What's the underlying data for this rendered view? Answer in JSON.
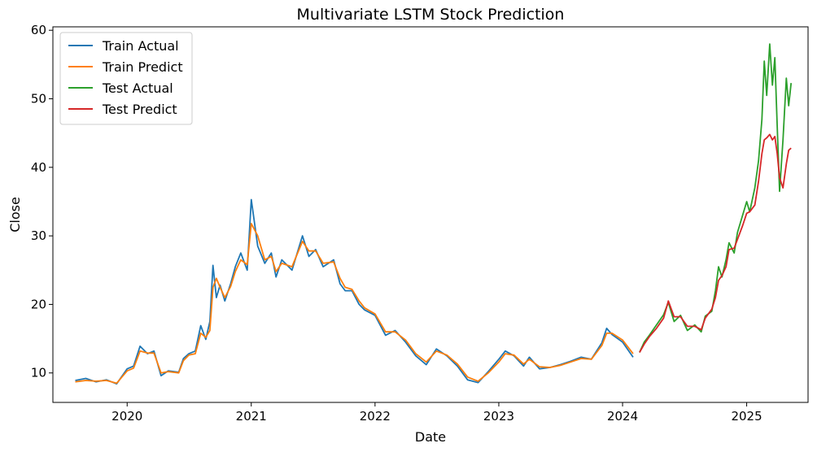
{
  "chart_data": {
    "type": "line",
    "title": "Multivariate LSTM Stock Prediction",
    "xlabel": "Date",
    "ylabel": "Close",
    "xlim": [
      "2019-05-27",
      "2025-07-01"
    ],
    "ylim": [
      5.7,
      60.5
    ],
    "x_ticks": [
      "2020",
      "2021",
      "2022",
      "2023",
      "2024",
      "2025"
    ],
    "x_tick_dates": [
      "2020-01-01",
      "2021-01-01",
      "2022-01-01",
      "2023-01-01",
      "2024-01-01",
      "2025-01-01"
    ],
    "y_ticks": [
      10,
      20,
      30,
      40,
      50,
      60
    ],
    "grid": false,
    "legend_position": "top-left",
    "series": [
      {
        "name": "Train Actual",
        "color": "#1f77b4",
        "points": [
          [
            "2019-08-01",
            8.9
          ],
          [
            "2019-09-01",
            9.2
          ],
          [
            "2019-10-01",
            8.7
          ],
          [
            "2019-11-01",
            9.0
          ],
          [
            "2019-12-01",
            8.4
          ],
          [
            "2020-01-01",
            10.6
          ],
          [
            "2020-01-20",
            11.0
          ],
          [
            "2020-02-08",
            13.9
          ],
          [
            "2020-03-01",
            12.8
          ],
          [
            "2020-03-20",
            13.2
          ],
          [
            "2020-04-10",
            9.6
          ],
          [
            "2020-05-01",
            10.3
          ],
          [
            "2020-06-01",
            10.1
          ],
          [
            "2020-06-15",
            12.1
          ],
          [
            "2020-07-01",
            12.8
          ],
          [
            "2020-07-20",
            13.2
          ],
          [
            "2020-08-05",
            16.9
          ],
          [
            "2020-08-20",
            14.9
          ],
          [
            "2020-09-01",
            17.5
          ],
          [
            "2020-09-10",
            25.7
          ],
          [
            "2020-09-20",
            21.0
          ],
          [
            "2020-10-01",
            22.8
          ],
          [
            "2020-10-15",
            20.5
          ],
          [
            "2020-11-01",
            23.0
          ],
          [
            "2020-11-15",
            25.5
          ],
          [
            "2020-12-01",
            27.5
          ],
          [
            "2020-12-20",
            25.0
          ],
          [
            "2021-01-01",
            35.3
          ],
          [
            "2021-01-20",
            28.5
          ],
          [
            "2021-02-10",
            26.0
          ],
          [
            "2021-03-01",
            27.5
          ],
          [
            "2021-03-15",
            24.0
          ],
          [
            "2021-04-01",
            26.5
          ],
          [
            "2021-05-01",
            25.0
          ],
          [
            "2021-06-01",
            30.0
          ],
          [
            "2021-06-20",
            27.0
          ],
          [
            "2021-07-10",
            28.0
          ],
          [
            "2021-08-01",
            25.5
          ],
          [
            "2021-09-01",
            26.5
          ],
          [
            "2021-09-20",
            23.0
          ],
          [
            "2021-10-05",
            22.0
          ],
          [
            "2021-10-25",
            22.0
          ],
          [
            "2021-11-15",
            20.0
          ],
          [
            "2021-12-01",
            19.2
          ],
          [
            "2022-01-01",
            18.4
          ],
          [
            "2022-02-01",
            15.5
          ],
          [
            "2022-03-01",
            16.2
          ],
          [
            "2022-04-01",
            14.5
          ],
          [
            "2022-05-01",
            12.5
          ],
          [
            "2022-06-01",
            11.2
          ],
          [
            "2022-07-01",
            13.5
          ],
          [
            "2022-08-01",
            12.5
          ],
          [
            "2022-09-01",
            11.0
          ],
          [
            "2022-10-01",
            9.0
          ],
          [
            "2022-11-01",
            8.6
          ],
          [
            "2022-12-01",
            10.2
          ],
          [
            "2023-01-01",
            12.0
          ],
          [
            "2023-01-20",
            13.2
          ],
          [
            "2023-02-15",
            12.5
          ],
          [
            "2023-03-15",
            11.0
          ],
          [
            "2023-04-01",
            12.3
          ],
          [
            "2023-05-01",
            10.6
          ],
          [
            "2023-06-01",
            10.8
          ],
          [
            "2023-07-01",
            11.2
          ],
          [
            "2023-08-01",
            11.7
          ],
          [
            "2023-09-01",
            12.3
          ],
          [
            "2023-10-01",
            12.0
          ],
          [
            "2023-11-01",
            14.4
          ],
          [
            "2023-11-15",
            16.5
          ],
          [
            "2023-12-01",
            15.6
          ],
          [
            "2024-01-01",
            14.5
          ],
          [
            "2024-02-01",
            12.3
          ]
        ]
      },
      {
        "name": "Train Predict",
        "color": "#ff7f0e",
        "points": [
          [
            "2019-08-01",
            8.7
          ],
          [
            "2019-09-01",
            8.9
          ],
          [
            "2019-10-01",
            8.8
          ],
          [
            "2019-11-01",
            8.9
          ],
          [
            "2019-12-01",
            8.5
          ],
          [
            "2020-01-01",
            10.3
          ],
          [
            "2020-01-20",
            10.7
          ],
          [
            "2020-02-08",
            13.2
          ],
          [
            "2020-03-01",
            12.9
          ],
          [
            "2020-03-20",
            12.9
          ],
          [
            "2020-04-10",
            10.0
          ],
          [
            "2020-05-01",
            10.2
          ],
          [
            "2020-06-01",
            10.0
          ],
          [
            "2020-06-15",
            11.8
          ],
          [
            "2020-07-01",
            12.6
          ],
          [
            "2020-07-20",
            12.8
          ],
          [
            "2020-08-05",
            15.8
          ],
          [
            "2020-08-20",
            15.2
          ],
          [
            "2020-09-01",
            16.2
          ],
          [
            "2020-09-10",
            22.5
          ],
          [
            "2020-09-20",
            23.8
          ],
          [
            "2020-10-01",
            22.5
          ],
          [
            "2020-10-15",
            21.0
          ],
          [
            "2020-11-01",
            22.6
          ],
          [
            "2020-11-15",
            24.8
          ],
          [
            "2020-12-01",
            26.5
          ],
          [
            "2020-12-20",
            25.8
          ],
          [
            "2021-01-01",
            31.8
          ],
          [
            "2021-01-20",
            30.0
          ],
          [
            "2021-02-10",
            26.5
          ],
          [
            "2021-03-01",
            27.0
          ],
          [
            "2021-03-15",
            24.8
          ],
          [
            "2021-04-01",
            26.0
          ],
          [
            "2021-05-01",
            25.5
          ],
          [
            "2021-06-01",
            29.2
          ],
          [
            "2021-06-20",
            27.8
          ],
          [
            "2021-07-10",
            27.8
          ],
          [
            "2021-08-01",
            26.0
          ],
          [
            "2021-09-01",
            26.2
          ],
          [
            "2021-09-20",
            23.8
          ],
          [
            "2021-10-05",
            22.5
          ],
          [
            "2021-10-25",
            22.2
          ],
          [
            "2021-11-15",
            20.5
          ],
          [
            "2021-12-01",
            19.5
          ],
          [
            "2022-01-01",
            18.6
          ],
          [
            "2022-02-01",
            16.0
          ],
          [
            "2022-03-01",
            16.0
          ],
          [
            "2022-04-01",
            14.8
          ],
          [
            "2022-05-01",
            12.8
          ],
          [
            "2022-06-01",
            11.6
          ],
          [
            "2022-07-01",
            13.2
          ],
          [
            "2022-08-01",
            12.6
          ],
          [
            "2022-09-01",
            11.3
          ],
          [
            "2022-10-01",
            9.4
          ],
          [
            "2022-11-01",
            8.8
          ],
          [
            "2022-12-01",
            10.0
          ],
          [
            "2023-01-01",
            11.6
          ],
          [
            "2023-01-20",
            12.8
          ],
          [
            "2023-02-15",
            12.6
          ],
          [
            "2023-03-15",
            11.3
          ],
          [
            "2023-04-01",
            12.0
          ],
          [
            "2023-05-01",
            10.9
          ],
          [
            "2023-06-01",
            10.8
          ],
          [
            "2023-07-01",
            11.1
          ],
          [
            "2023-08-01",
            11.6
          ],
          [
            "2023-09-01",
            12.1
          ],
          [
            "2023-10-01",
            12.0
          ],
          [
            "2023-11-01",
            14.0
          ],
          [
            "2023-11-15",
            15.8
          ],
          [
            "2023-12-01",
            15.8
          ],
          [
            "2024-01-01",
            14.8
          ],
          [
            "2024-02-01",
            12.8
          ]
        ]
      },
      {
        "name": "Test Actual",
        "color": "#2ca02c",
        "points": [
          [
            "2024-02-20",
            13.0
          ],
          [
            "2024-03-05",
            14.5
          ],
          [
            "2024-03-20",
            15.5
          ],
          [
            "2024-04-10",
            17.0
          ],
          [
            "2024-05-01",
            18.5
          ],
          [
            "2024-05-15",
            20.3
          ],
          [
            "2024-06-01",
            17.5
          ],
          [
            "2024-06-20",
            18.4
          ],
          [
            "2024-07-10",
            16.2
          ],
          [
            "2024-08-01",
            17.0
          ],
          [
            "2024-08-20",
            16.0
          ],
          [
            "2024-09-01",
            18.3
          ],
          [
            "2024-09-20",
            19.0
          ],
          [
            "2024-10-01",
            22.0
          ],
          [
            "2024-10-10",
            25.5
          ],
          [
            "2024-10-20",
            24.0
          ],
          [
            "2024-11-01",
            26.5
          ],
          [
            "2024-11-10",
            29.0
          ],
          [
            "2024-11-25",
            27.5
          ],
          [
            "2024-12-05",
            30.5
          ],
          [
            "2024-12-20",
            33.0
          ],
          [
            "2025-01-01",
            35.0
          ],
          [
            "2025-01-10",
            33.5
          ],
          [
            "2025-01-25",
            37.0
          ],
          [
            "2025-02-05",
            41.0
          ],
          [
            "2025-02-15",
            47.0
          ],
          [
            "2025-02-22",
            55.5
          ],
          [
            "2025-03-01",
            50.5
          ],
          [
            "2025-03-10",
            58.0
          ],
          [
            "2025-03-18",
            52.0
          ],
          [
            "2025-03-25",
            56.0
          ],
          [
            "2025-04-01",
            46.0
          ],
          [
            "2025-04-08",
            36.5
          ],
          [
            "2025-04-18",
            44.0
          ],
          [
            "2025-04-28",
            53.0
          ],
          [
            "2025-05-05",
            49.0
          ],
          [
            "2025-05-12",
            52.3
          ]
        ]
      },
      {
        "name": "Test Predict",
        "color": "#d62728",
        "points": [
          [
            "2024-02-20",
            13.0
          ],
          [
            "2024-03-05",
            14.2
          ],
          [
            "2024-03-20",
            15.3
          ],
          [
            "2024-04-10",
            16.5
          ],
          [
            "2024-05-01",
            18.0
          ],
          [
            "2024-05-15",
            20.5
          ],
          [
            "2024-06-01",
            18.2
          ],
          [
            "2024-06-20",
            18.2
          ],
          [
            "2024-07-10",
            16.8
          ],
          [
            "2024-08-01",
            16.8
          ],
          [
            "2024-08-20",
            16.3
          ],
          [
            "2024-09-01",
            18.0
          ],
          [
            "2024-09-20",
            19.3
          ],
          [
            "2024-10-01",
            21.0
          ],
          [
            "2024-10-10",
            23.5
          ],
          [
            "2024-10-20",
            24.2
          ],
          [
            "2024-11-01",
            25.5
          ],
          [
            "2024-11-10",
            28.0
          ],
          [
            "2024-11-25",
            28.2
          ],
          [
            "2024-12-05",
            29.5
          ],
          [
            "2024-12-20",
            31.5
          ],
          [
            "2025-01-01",
            33.3
          ],
          [
            "2025-01-10",
            33.5
          ],
          [
            "2025-01-25",
            34.5
          ],
          [
            "2025-02-05",
            38.0
          ],
          [
            "2025-02-15",
            42.0
          ],
          [
            "2025-02-22",
            44.0
          ],
          [
            "2025-03-01",
            44.3
          ],
          [
            "2025-03-10",
            44.8
          ],
          [
            "2025-03-18",
            44.0
          ],
          [
            "2025-03-25",
            44.5
          ],
          [
            "2025-04-01",
            42.0
          ],
          [
            "2025-04-08",
            38.5
          ],
          [
            "2025-04-18",
            37.0
          ],
          [
            "2025-04-28",
            40.5
          ],
          [
            "2025-05-05",
            42.5
          ],
          [
            "2025-05-12",
            42.8
          ]
        ]
      }
    ]
  }
}
